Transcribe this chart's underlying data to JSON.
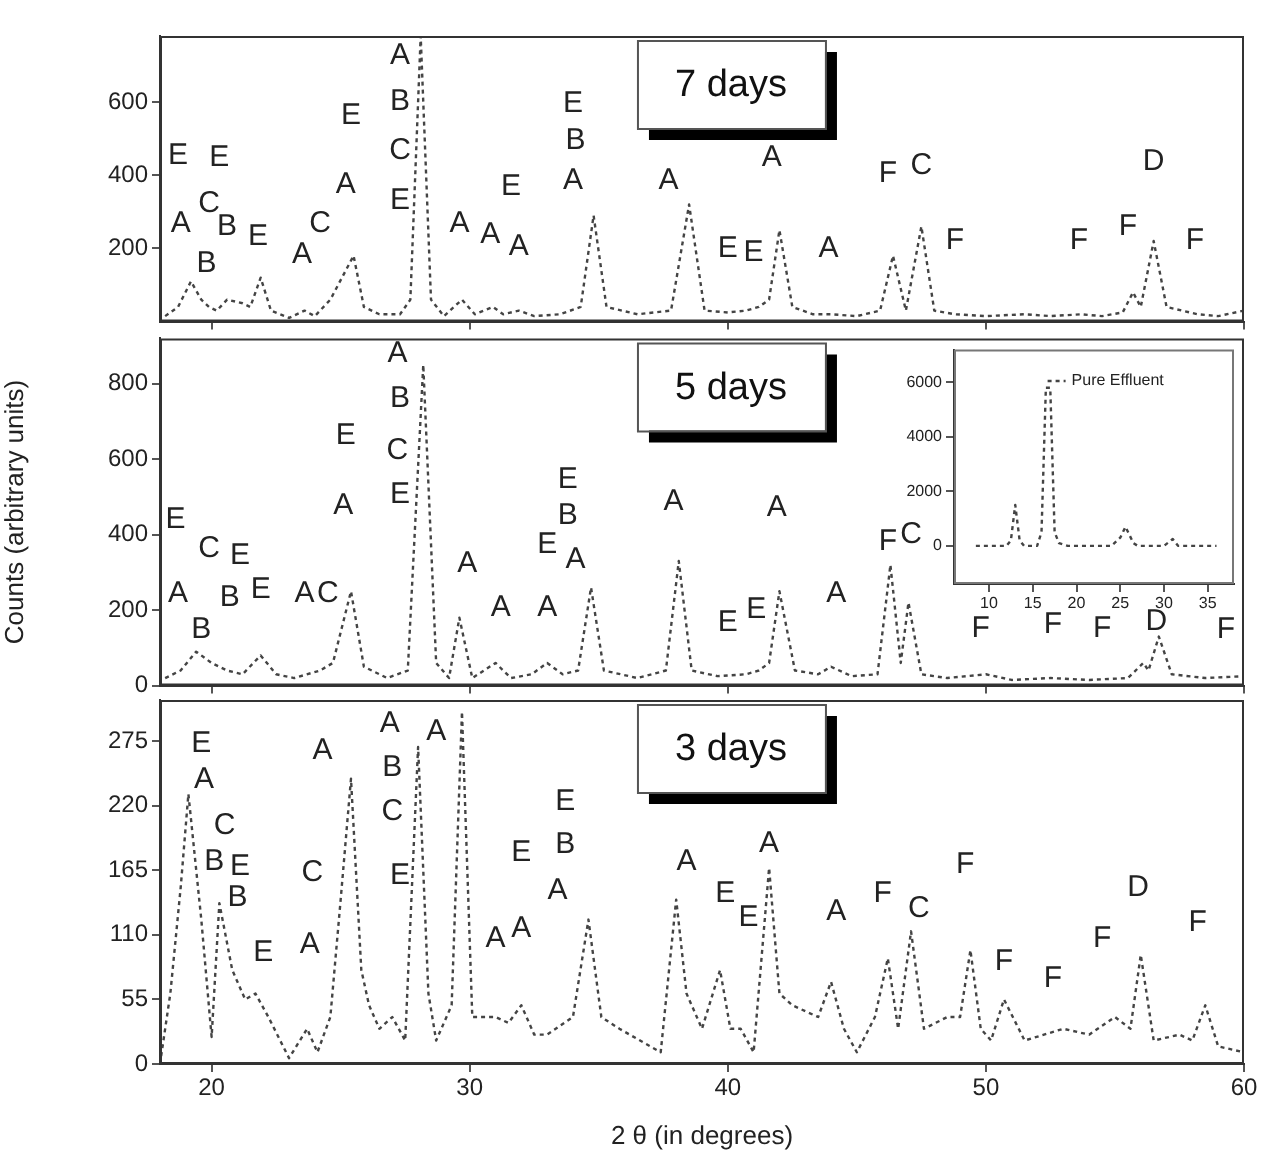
{
  "chart_data": [
    {
      "type": "line",
      "title": "7 days",
      "xlim": [
        18,
        60
      ],
      "xticks": [
        20,
        30,
        40,
        50,
        60
      ],
      "ylim": [
        0,
        780
      ],
      "yticks": [
        200,
        400,
        600
      ],
      "tick_labels": "y",
      "line_style": "dotted",
      "x": [
        18.2,
        18.7,
        19.2,
        19.6,
        19.9,
        20.2,
        20.6,
        21.2,
        21.5,
        21.9,
        22.3,
        23.0,
        23.6,
        24.0,
        24.6,
        24.9,
        25.5,
        25.9,
        26.5,
        27.3,
        27.7,
        28.1,
        28.5,
        29.0,
        29.7,
        30.2,
        30.9,
        31.3,
        31.9,
        32.5,
        33.5,
        34.3,
        34.8,
        35.3,
        36.5,
        37.8,
        38.5,
        39.1,
        40.0,
        40.7,
        41.2,
        41.6,
        42.0,
        42.5,
        43.3,
        44.0,
        45.0,
        45.9,
        46.4,
        46.9,
        47.5,
        48.0,
        48.8,
        50.0,
        51.5,
        52.5,
        53.7,
        54.5,
        55.3,
        55.7,
        56.0,
        56.5,
        57.0,
        58.2,
        59.0,
        60.0
      ],
      "series": [
        {
          "color": "#444444",
          "values": [
            15,
            40,
            110,
            60,
            40,
            30,
            60,
            50,
            40,
            120,
            30,
            10,
            30,
            15,
            60,
            100,
            180,
            40,
            20,
            20,
            60,
            780,
            60,
            15,
            60,
            20,
            40,
            20,
            30,
            15,
            20,
            40,
            290,
            40,
            20,
            30,
            320,
            30,
            25,
            30,
            40,
            60,
            250,
            40,
            20,
            20,
            15,
            30,
            180,
            30,
            260,
            30,
            20,
            15,
            20,
            15,
            20,
            15,
            25,
            80,
            40,
            220,
            40,
            20,
            15,
            30
          ]
        }
      ],
      "annotations": [
        "E",
        "A",
        "B",
        "C",
        "E",
        "B",
        "E",
        "A",
        "C",
        "A",
        "E",
        "A",
        "B",
        "C",
        "E",
        "A",
        "A",
        "A",
        "E",
        "E",
        "B",
        "A",
        "A",
        "E",
        "E",
        "A",
        "A",
        "F",
        "C",
        "F",
        "F",
        "F",
        "D",
        "F"
      ]
    },
    {
      "type": "line",
      "title": "5 days",
      "ylabel": "Counts (arbitrary units)",
      "xlim": [
        18,
        60
      ],
      "xticks": [
        20,
        30,
        40,
        50,
        60
      ],
      "ylim": [
        0,
        920
      ],
      "yticks": [
        0,
        200,
        400,
        600,
        800
      ],
      "tick_labels": "y",
      "line_style": "dotted",
      "x": [
        18.2,
        18.8,
        19.4,
        20.0,
        20.6,
        21.2,
        21.9,
        22.5,
        23.2,
        24.2,
        24.7,
        25.4,
        25.9,
        26.8,
        27.6,
        28.2,
        28.7,
        29.2,
        29.6,
        30.1,
        31.0,
        31.6,
        32.4,
        33.0,
        33.6,
        34.2,
        34.7,
        35.2,
        36.5,
        37.6,
        38.1,
        38.6,
        39.6,
        40.7,
        41.2,
        41.6,
        42.0,
        42.6,
        43.5,
        44.0,
        44.8,
        45.8,
        46.3,
        46.7,
        47.0,
        47.5,
        48.5,
        50.0,
        51.0,
        52.5,
        54.0,
        55.5,
        56.1,
        56.3,
        56.7,
        57.2,
        58.5,
        60.0
      ],
      "series": [
        {
          "color": "#444444",
          "values": [
            20,
            40,
            90,
            60,
            40,
            30,
            80,
            30,
            20,
            40,
            60,
            250,
            50,
            20,
            40,
            850,
            60,
            20,
            180,
            20,
            60,
            20,
            30,
            60,
            30,
            40,
            260,
            40,
            20,
            40,
            330,
            40,
            25,
            30,
            40,
            60,
            250,
            40,
            30,
            50,
            25,
            30,
            320,
            60,
            220,
            30,
            20,
            30,
            15,
            20,
            15,
            20,
            60,
            40,
            130,
            30,
            20,
            25
          ]
        }
      ],
      "annotations": [
        "A",
        "B",
        "C",
        "E",
        "E",
        "A",
        "B",
        "C",
        "B",
        "E",
        "E",
        "A",
        "C",
        "E",
        "A",
        "A",
        "A",
        "A",
        "E",
        "E",
        "B",
        "A",
        "A",
        "E",
        "E",
        "A",
        "A",
        "F",
        "C",
        "F",
        "F",
        "F",
        "D",
        "F"
      ]
    },
    {
      "type": "line",
      "title": "3 days",
      "xlabel": "2 θ (in degrees)",
      "xlim": [
        18,
        60
      ],
      "xticks": [
        20,
        30,
        40,
        50,
        60
      ],
      "ylim": [
        0,
        310
      ],
      "yticks": [
        0,
        55,
        110,
        165,
        220,
        275
      ],
      "line_style": "dotted",
      "x": [
        18.0,
        18.4,
        18.8,
        19.1,
        19.6,
        20.0,
        20.3,
        20.8,
        21.3,
        21.7,
        22.2,
        23.0,
        23.7,
        24.1,
        24.6,
        25.0,
        25.4,
        25.8,
        26.1,
        26.5,
        27.0,
        27.5,
        28.0,
        28.4,
        28.7,
        29.3,
        29.7,
        30.1,
        31.0,
        31.5,
        32.0,
        32.5,
        33.0,
        34.0,
        34.6,
        35.1,
        35.8,
        37.4,
        38.0,
        38.4,
        39.0,
        39.7,
        40.1,
        40.5,
        41.0,
        41.6,
        42.0,
        42.5,
        43.5,
        44.0,
        44.5,
        45.0,
        45.7,
        46.2,
        46.6,
        47.1,
        47.6,
        48.5,
        49.0,
        49.4,
        49.8,
        50.2,
        50.7,
        51.5,
        53.0,
        54.0,
        55.0,
        55.6,
        56.0,
        56.5,
        57.5,
        58.0,
        58.5,
        59.0,
        60.0
      ],
      "series": [
        {
          "color": "#444444",
          "values": [
            0,
            60,
            150,
            230,
            123,
            23,
            137,
            80,
            55,
            60,
            40,
            5,
            30,
            10,
            40,
            140,
            243,
            80,
            50,
            30,
            40,
            20,
            270,
            60,
            20,
            50,
            300,
            40,
            40,
            35,
            50,
            25,
            25,
            40,
            123,
            40,
            30,
            10,
            140,
            60,
            30,
            80,
            30,
            30,
            10,
            167,
            60,
            50,
            40,
            70,
            30,
            10,
            40,
            90,
            30,
            113,
            30,
            40,
            40,
            97,
            30,
            20,
            55,
            20,
            30,
            25,
            40,
            30,
            93,
            20,
            25,
            20,
            50,
            15,
            10
          ]
        }
      ],
      "annotations": [
        "E",
        "A",
        "C",
        "B",
        "E",
        "B",
        "E",
        "A",
        "C",
        "A",
        "A",
        "B",
        "C",
        "E",
        "A",
        "A",
        "A",
        "E",
        "E",
        "B",
        "A",
        "A",
        "E",
        "E",
        "A",
        "A",
        "F",
        "C",
        "F",
        "F",
        "F",
        "F",
        "D",
        "F"
      ]
    },
    {
      "type": "line",
      "xlim": [
        6,
        38
      ],
      "xticks": [
        10,
        15,
        20,
        25,
        30,
        35
      ],
      "ylim": [
        -1400,
        7200
      ],
      "yticks": [
        0,
        2000,
        4000,
        6000
      ],
      "line_style": "dotted",
      "legend": "top",
      "x": [
        8.5,
        12.0,
        12.5,
        13.0,
        13.5,
        14.0,
        15.5,
        16.0,
        16.5,
        17.0,
        17.5,
        18.0,
        19.0,
        24.0,
        25.0,
        25.6,
        26.5,
        27.0,
        30.0,
        31.0,
        31.6,
        35.0,
        36.0
      ],
      "series": [
        {
          "name": "Pure Effluent",
          "color": "#444444",
          "values": [
            0,
            0,
            200,
            1500,
            200,
            0,
            0,
            500,
            5800,
            5800,
            500,
            100,
            0,
            0,
            300,
            700,
            100,
            0,
            0,
            250,
            0,
            0,
            0
          ]
        }
      ]
    }
  ]
}
